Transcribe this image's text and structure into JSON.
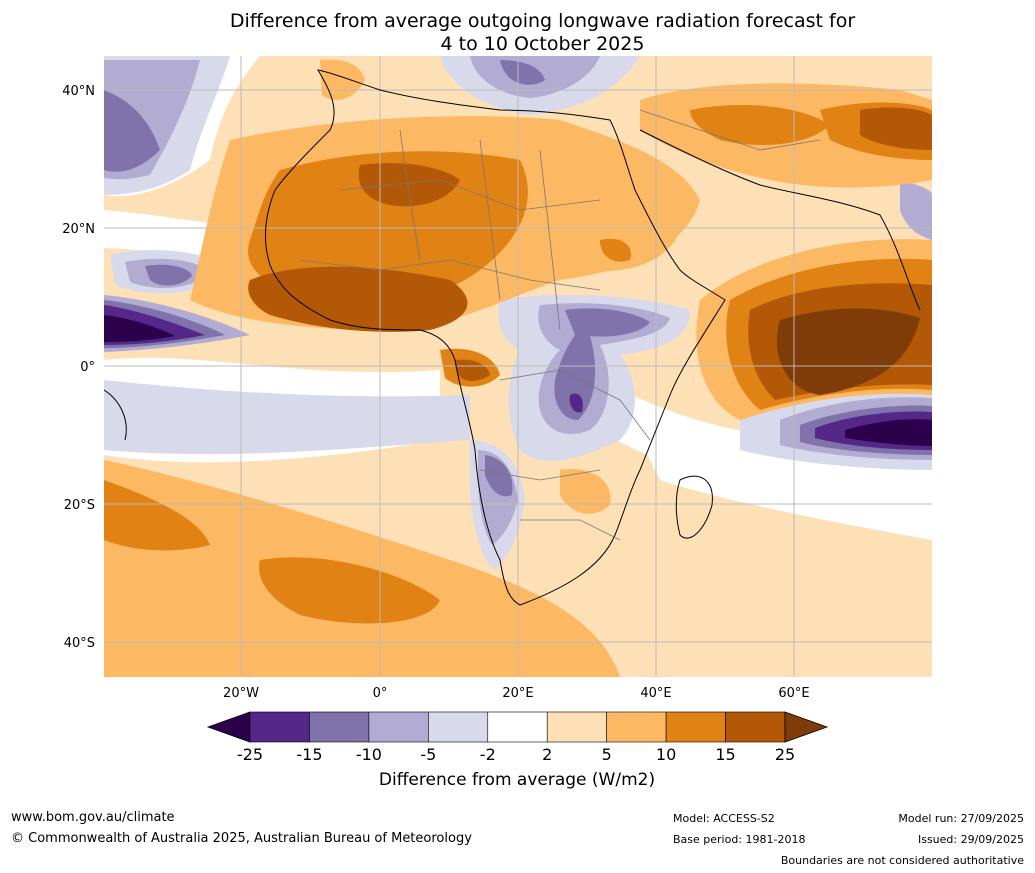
{
  "title": {
    "line1": "Difference from average outgoing longwave radiation forecast for",
    "line2": "4 to 10 October 2025"
  },
  "map": {
    "lat_ticks": [
      {
        "lat": 40,
        "label": "40°N"
      },
      {
        "lat": 20,
        "label": "20°N"
      },
      {
        "lat": 0,
        "label": "0°"
      },
      {
        "lat": -20,
        "label": "20°S"
      },
      {
        "lat": -40,
        "label": "40°S"
      }
    ],
    "lon_ticks": [
      {
        "lon": -20,
        "label": "20°W"
      },
      {
        "lon": 0,
        "label": "0°"
      },
      {
        "lon": 20,
        "label": "20°E"
      },
      {
        "lon": 40,
        "label": "40°E"
      },
      {
        "lon": 60,
        "label": "60°E"
      }
    ],
    "extent": {
      "lon_min": -40,
      "lon_max": 80,
      "lat_min": -45,
      "lat_max": 45
    }
  },
  "colorbar": {
    "title": "Difference from average (W/m2)",
    "ticks": [
      "-25",
      "-15",
      "-10",
      "-5",
      "-2",
      "2",
      "5",
      "10",
      "15",
      "25"
    ],
    "colors": {
      "below": "#2d004b",
      "bins": [
        "#542788",
        "#8073ac",
        "#b2abd2",
        "#d8daeb",
        "#ffffff",
        "#fee0b6",
        "#fdb863",
        "#e08214",
        "#b35806"
      ],
      "above": "#7f3b08"
    }
  },
  "footer": {
    "url": "www.bom.gov.au/climate",
    "copyright": "© Commonwealth of Australia 2025, Australian Bureau of Meteorology",
    "model": "Model: ACCESS-S2",
    "base_period": "Base period: 1981-2018",
    "model_run": "Model run: 27/09/2025",
    "issued": "Issued: 29/09/2025",
    "disclaimer": "Boundaries are not considered authoritative"
  }
}
